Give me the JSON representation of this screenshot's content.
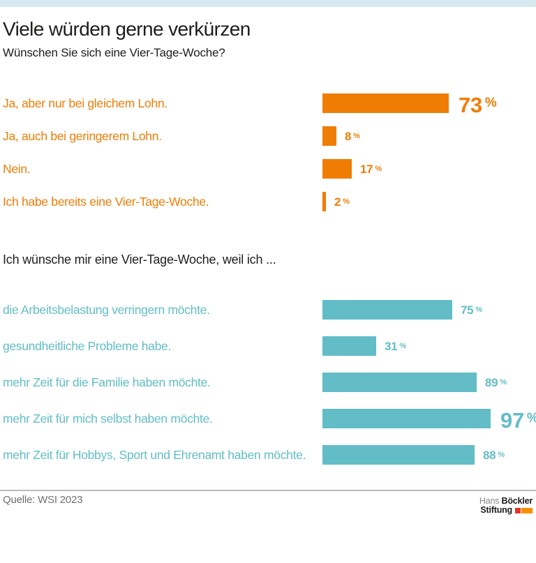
{
  "page": {
    "title": "Viele würden gerne verkürzen",
    "source": "Quelle: WSI 2023",
    "logo": {
      "name_light": "Hans",
      "name_bold": "Böckler",
      "line2": "Stiftung",
      "mark_red": "#e63323",
      "mark_orange": "#f39200"
    }
  },
  "colors": {
    "accent_strip": "#d6e8f0",
    "orange": "#ef7d05",
    "teal": "#62bdc7",
    "text": "#1d1d1b",
    "gray_text": "#706f6f",
    "divider": "#b6bdc0"
  },
  "chart_data": [
    {
      "type": "bar",
      "orientation": "horizontal",
      "title": "Wünschen Sie sich eine Vier-Tage-Woche?",
      "unit": "%",
      "xlim": [
        0,
        100
      ],
      "series_color": "#ef7d05",
      "categories": [
        "Ja, aber nur bei gleichem Lohn.",
        "Ja, auch bei geringerem Lohn.",
        "Nein.",
        "Ich habe bereits eine Vier-Tage-Woche."
      ],
      "values": [
        73,
        8,
        17,
        2
      ],
      "emphasized_indices": [
        0
      ]
    },
    {
      "type": "bar",
      "orientation": "horizontal",
      "title": "Ich wünsche mir eine Vier-Tage-Woche, weil ich ...",
      "unit": "%",
      "xlim": [
        0,
        100
      ],
      "series_color": "#62bdc7",
      "categories": [
        "die Arbeitsbelastung verringern möchte.",
        "gesundheitliche Probleme habe.",
        "mehr Zeit für die Familie haben möchte.",
        "mehr Zeit für mich selbst haben möchte.",
        "mehr Zeit für Hobbys, Sport und Ehrenamt haben möchte."
      ],
      "values": [
        75,
        31,
        89,
        97,
        88
      ],
      "emphasized_indices": [
        3
      ]
    }
  ]
}
